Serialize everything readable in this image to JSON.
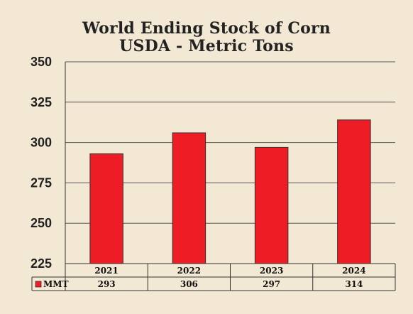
{
  "chart_data": {
    "type": "bar",
    "title": "World Ending Stock of Corn",
    "subtitle": "USDA - Metric Tons",
    "categories": [
      "2021",
      "2022",
      "2023",
      "2024"
    ],
    "series": [
      {
        "name": "MMT",
        "values": [
          293,
          306,
          297,
          314
        ]
      }
    ],
    "ylim": [
      225,
      350
    ],
    "yticks": [
      225,
      250,
      275,
      300,
      325,
      350
    ],
    "grid": true,
    "bar_color": "#ee1c25",
    "table_below": true
  }
}
